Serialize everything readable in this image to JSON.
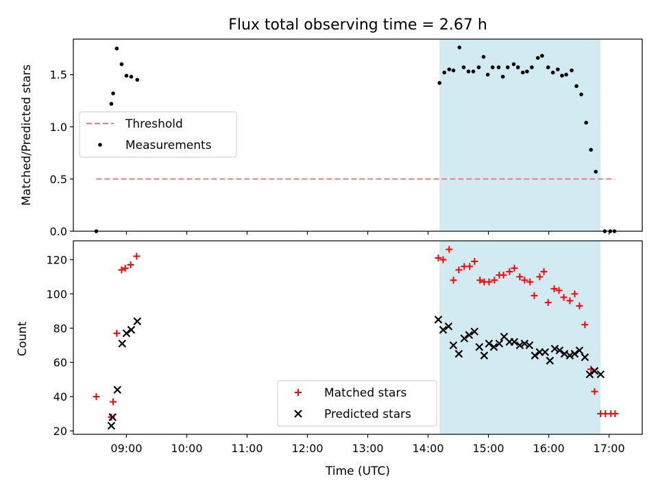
{
  "figure": {
    "title": "Flux total observing time = 2.67 h"
  },
  "chart_data": [
    {
      "type": "scatter",
      "ylabel": "Matched/Predicted stars",
      "xlim": [
        8.12,
        17.55
      ],
      "ylim": [
        0,
        1.84
      ],
      "yticks": [
        0.0,
        0.5,
        1.0,
        1.5
      ],
      "ytick_labels": [
        "0.0",
        "0.5",
        "1.0",
        "1.5"
      ],
      "shaded_region": {
        "x": [
          14.19,
          16.86
        ],
        "color": "#add8e6"
      },
      "legend_position": "center-left",
      "legend": [
        {
          "label": "Threshold",
          "style": "dashed-line",
          "color": "#f08080"
        },
        {
          "label": "Measurements",
          "style": "dot",
          "color": "#000000"
        }
      ],
      "threshold": {
        "x": [
          8.5,
          17.1
        ],
        "y": 0.5
      },
      "series": [
        {
          "name": "Measurements",
          "color": "#000000",
          "points": [
            [
              8.5,
              0.0
            ],
            [
              8.75,
              1.22
            ],
            [
              8.78,
              1.32
            ],
            [
              8.84,
              1.75
            ],
            [
              8.92,
              1.6
            ],
            [
              9.0,
              1.49
            ],
            [
              9.08,
              1.48
            ],
            [
              9.18,
              1.45
            ],
            [
              14.19,
              1.42
            ],
            [
              14.27,
              1.52
            ],
            [
              14.35,
              1.55
            ],
            [
              14.42,
              1.54
            ],
            [
              14.52,
              1.76
            ],
            [
              14.59,
              1.57
            ],
            [
              14.67,
              1.53
            ],
            [
              14.75,
              1.53
            ],
            [
              14.84,
              1.57
            ],
            [
              14.92,
              1.67
            ],
            [
              14.99,
              1.5
            ],
            [
              15.07,
              1.57
            ],
            [
              15.17,
              1.57
            ],
            [
              15.24,
              1.48
            ],
            [
              15.32,
              1.57
            ],
            [
              15.42,
              1.6
            ],
            [
              15.49,
              1.57
            ],
            [
              15.57,
              1.52
            ],
            [
              15.64,
              1.53
            ],
            [
              15.72,
              1.57
            ],
            [
              15.82,
              1.66
            ],
            [
              15.89,
              1.68
            ],
            [
              15.99,
              1.57
            ],
            [
              16.07,
              1.52
            ],
            [
              16.15,
              1.55
            ],
            [
              16.22,
              1.49
            ],
            [
              16.29,
              1.5
            ],
            [
              16.38,
              1.54
            ],
            [
              16.46,
              1.39
            ],
            [
              16.54,
              1.31
            ],
            [
              16.62,
              1.04
            ],
            [
              16.7,
              0.78
            ],
            [
              16.78,
              0.57
            ],
            [
              16.93,
              0.0
            ],
            [
              17.02,
              0.0
            ],
            [
              17.09,
              0.0
            ]
          ]
        }
      ]
    },
    {
      "type": "scatter",
      "xlabel": "Time (UTC)",
      "ylabel": "Count",
      "xlim": [
        8.12,
        17.55
      ],
      "ylim": [
        18,
        131
      ],
      "xticks": [
        9,
        10,
        11,
        12,
        13,
        14,
        15,
        16,
        17
      ],
      "xtick_labels": [
        "09:00",
        "10:00",
        "11:00",
        "12:00",
        "13:00",
        "14:00",
        "15:00",
        "16:00",
        "17:00"
      ],
      "yticks": [
        20,
        40,
        60,
        80,
        100,
        120
      ],
      "ytick_labels": [
        "20",
        "40",
        "60",
        "80",
        "100",
        "120"
      ],
      "shaded_region": {
        "x": [
          14.19,
          16.86
        ],
        "color": "#add8e6"
      },
      "legend_position": "lower-center",
      "legend": [
        {
          "label": "Matched stars",
          "style": "plus",
          "color": "#ff0000"
        },
        {
          "label": "Predicted stars",
          "style": "x",
          "color": "#000000"
        }
      ],
      "series": [
        {
          "name": "Matched stars",
          "color": "#ff0000",
          "marker": "plus",
          "points": [
            [
              8.5,
              40
            ],
            [
              8.75,
              28
            ],
            [
              8.78,
              37
            ],
            [
              8.84,
              77
            ],
            [
              8.92,
              114
            ],
            [
              8.98,
              115
            ],
            [
              9.07,
              117
            ],
            [
              9.17,
              122
            ],
            [
              14.17,
              121
            ],
            [
              14.25,
              120
            ],
            [
              14.35,
              126
            ],
            [
              14.42,
              108
            ],
            [
              14.51,
              114
            ],
            [
              14.6,
              116
            ],
            [
              14.69,
              116
            ],
            [
              14.77,
              119
            ],
            [
              14.86,
              108
            ],
            [
              14.93,
              107
            ],
            [
              15.01,
              107
            ],
            [
              15.1,
              108
            ],
            [
              15.18,
              111
            ],
            [
              15.25,
              111
            ],
            [
              15.35,
              113
            ],
            [
              15.43,
              115
            ],
            [
              15.52,
              110
            ],
            [
              15.6,
              108
            ],
            [
              15.69,
              107
            ],
            [
              15.76,
              99
            ],
            [
              15.85,
              110
            ],
            [
              15.92,
              113
            ],
            [
              15.99,
              95
            ],
            [
              16.09,
              103
            ],
            [
              16.17,
              102
            ],
            [
              16.25,
              98
            ],
            [
              16.35,
              96
            ],
            [
              16.43,
              100
            ],
            [
              16.51,
              93
            ],
            [
              16.6,
              82
            ],
            [
              16.7,
              56
            ],
            [
              16.76,
              43
            ],
            [
              16.86,
              30
            ],
            [
              16.94,
              30
            ],
            [
              17.03,
              30
            ],
            [
              17.1,
              30
            ]
          ]
        },
        {
          "name": "Predicted stars",
          "color": "#000000",
          "marker": "x",
          "points": [
            [
              8.75,
              23
            ],
            [
              8.77,
              28
            ],
            [
              8.85,
              44
            ],
            [
              8.93,
              71
            ],
            [
              9.0,
              77
            ],
            [
              9.08,
              79
            ],
            [
              9.18,
              84
            ],
            [
              14.17,
              85
            ],
            [
              14.25,
              79
            ],
            [
              14.34,
              81
            ],
            [
              14.42,
              70
            ],
            [
              14.51,
              65
            ],
            [
              14.6,
              74
            ],
            [
              14.68,
              76
            ],
            [
              14.77,
              78
            ],
            [
              14.85,
              69
            ],
            [
              14.93,
              64
            ],
            [
              15.01,
              71
            ],
            [
              15.09,
              69
            ],
            [
              15.18,
              71
            ],
            [
              15.26,
              75
            ],
            [
              15.35,
              72
            ],
            [
              15.43,
              72
            ],
            [
              15.52,
              70
            ],
            [
              15.6,
              71
            ],
            [
              15.68,
              70
            ],
            [
              15.77,
              64
            ],
            [
              15.85,
              66
            ],
            [
              15.94,
              66
            ],
            [
              16.02,
              61
            ],
            [
              16.1,
              68
            ],
            [
              16.18,
              67
            ],
            [
              16.26,
              65
            ],
            [
              16.35,
              64
            ],
            [
              16.43,
              65
            ],
            [
              16.51,
              67
            ],
            [
              16.6,
              63
            ],
            [
              16.68,
              53
            ],
            [
              16.76,
              55
            ],
            [
              16.86,
              53
            ]
          ]
        }
      ]
    }
  ]
}
